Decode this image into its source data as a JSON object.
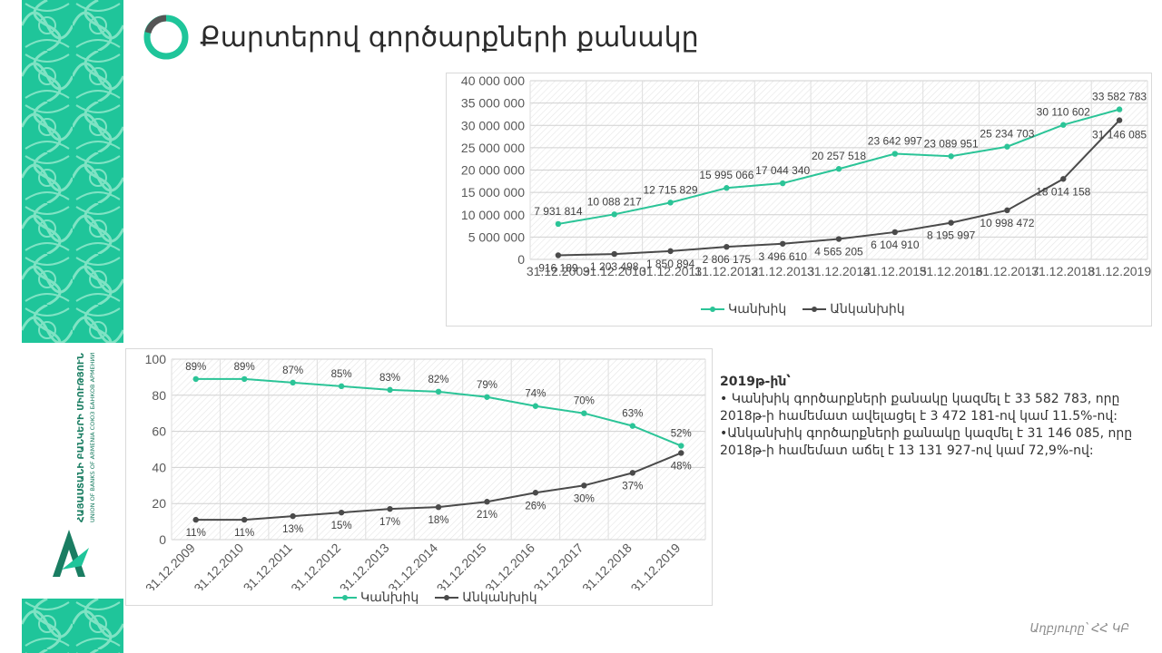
{
  "page": {
    "title": "Քարտերով գործարքների քանակը",
    "source": "Աղբյուրը՝ ՀՀ ԿԲ"
  },
  "colors": {
    "brand_green": "#1fc59a",
    "contact_series": "#2bc497",
    "contactless_series": "#4a4a4a",
    "ring_dark": "#555555"
  },
  "logo": {
    "line1": "ՀԱՅԱՍՏԱՆԻ ԲԱՆԿԵՐԻ ՄԻՈՒԹՅՈՒՆ",
    "line2": "UNION OF BANKS OF ARMENIA  СОЮЗ БАНКОВ АРМЕНИИ"
  },
  "text": {
    "heading": "2019թ-ին՝",
    "bullet1": "• Կանխիկ գործարքների քանակը կազմել է  33 582 783, որը 2018թ-ի համեմատ ավելացել է  3 472 181-ով կամ 11.5%-ով:",
    "bullet2": "•Անկանխիկ գործարքների քանակը կազմել է 31 146 085, որը 2018թ-ի համեմատ  աճել է 13 131  927-ով կամ 72,9%-ով:"
  },
  "chart_data": [
    {
      "type": "line",
      "categories": [
        "31.12.2009",
        "31.12.2010",
        "31.12.2011",
        "31.12.2012",
        "31.12.2013",
        "31.12.2014",
        "31.12.2015",
        "31.12.2016",
        "31.12.2017",
        "31.12.2018",
        "31.12.2019"
      ],
      "series": [
        {
          "name": "Կանխիկ",
          "values": [
            7931814,
            10088217,
            12715829,
            15995066,
            17044340,
            20257518,
            23642997,
            23089951,
            25234703,
            30110602,
            33582783
          ],
          "labels": [
            "7 931 814",
            "10 088 217",
            "12 715 829",
            "15 995 066",
            "17 044 340",
            "20 257 518",
            "23 642 997",
            "23 089 951",
            "25 234 703",
            "30 110 602",
            "33 582 783"
          ]
        },
        {
          "name": "Անկանխիկ",
          "values": [
            916189,
            1203498,
            1850894,
            2806175,
            3496610,
            4565205,
            6104910,
            8195997,
            10998472,
            18014158,
            31146085
          ],
          "labels": [
            "916 189",
            "1 203 498",
            "1 850 894",
            "2 806 175",
            "3 496 610",
            "4 565 205",
            "6 104 910",
            "8 195 997",
            "10 998 472",
            "18 014 158",
            "31 146 085"
          ]
        }
      ],
      "ylim": [
        0,
        40000000
      ],
      "yticks": [
        "0",
        "5 000 000",
        "10 000 000",
        "15 000 000",
        "20 000 000",
        "25 000 000",
        "30 000 000",
        "35 000 000",
        "40 000 000"
      ],
      "grid": true,
      "legend": "bottom"
    },
    {
      "type": "line",
      "categories": [
        "31.12.2009",
        "31.12.2010",
        "31.12.2011",
        "31.12.2012",
        "31.12.2013",
        "31.12.2014",
        "31.12.2015",
        "31.12.2016",
        "31.12.2017",
        "31.12.2018",
        "31.12.2019"
      ],
      "series": [
        {
          "name": "Կանխիկ",
          "values": [
            89,
            89,
            87,
            85,
            83,
            82,
            79,
            74,
            70,
            63,
            52
          ]
        },
        {
          "name": "Անկանխիկ",
          "values": [
            11,
            11,
            13,
            15,
            17,
            18,
            21,
            26,
            30,
            37,
            48
          ]
        }
      ],
      "ylim": [
        0,
        100
      ],
      "yticks": [
        "0",
        "20",
        "40",
        "60",
        "80",
        "100"
      ],
      "value_suffix": "%",
      "grid": true,
      "legend": "bottom"
    }
  ]
}
